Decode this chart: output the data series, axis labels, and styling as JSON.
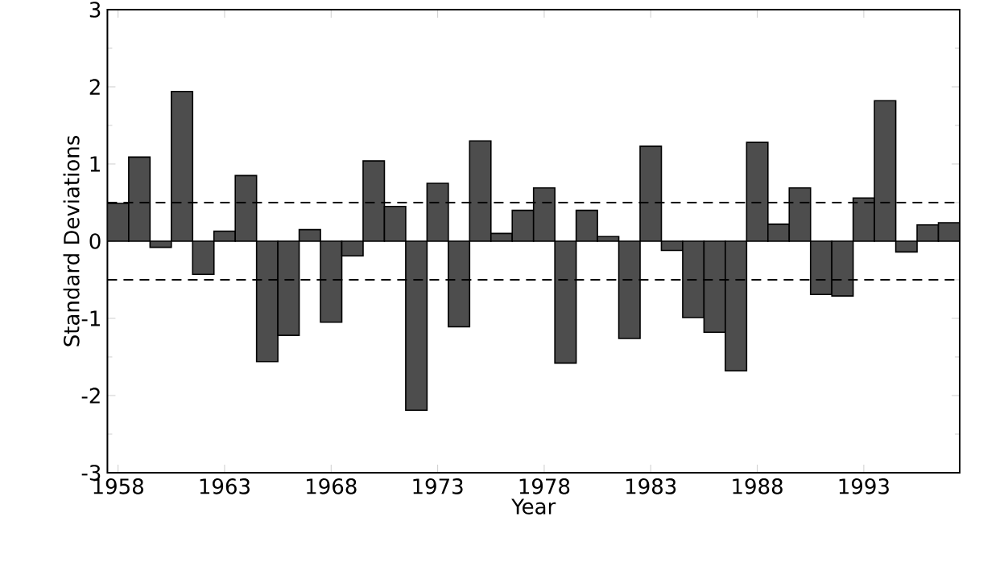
{
  "chart_data": {
    "type": "bar",
    "xlabel": "Year",
    "ylabel": "Standard Deviations",
    "x": [
      1958,
      1959,
      1960,
      1961,
      1962,
      1963,
      1964,
      1965,
      1966,
      1967,
      1968,
      1969,
      1970,
      1971,
      1972,
      1973,
      1974,
      1975,
      1976,
      1977,
      1978,
      1979,
      1980,
      1981,
      1982,
      1983,
      1984,
      1985,
      1986,
      1987,
      1988,
      1989,
      1990,
      1991,
      1992,
      1993,
      1994,
      1995,
      1996,
      1997
    ],
    "values": [
      0.49,
      1.09,
      -0.08,
      1.94,
      -0.43,
      0.13,
      0.85,
      -1.56,
      -1.22,
      0.15,
      -1.05,
      -0.19,
      1.04,
      0.45,
      -2.19,
      0.75,
      -1.11,
      1.3,
      0.1,
      0.4,
      0.69,
      -1.58,
      0.4,
      0.06,
      -1.26,
      1.23,
      -0.12,
      -0.99,
      -1.18,
      -1.68,
      1.28,
      0.22,
      0.69,
      -0.69,
      -0.71,
      0.56,
      1.82,
      -0.14,
      0.21,
      0.24
    ],
    "color": "#4d4d4d",
    "xlim": [
      1957.5,
      1997.5
    ],
    "xticks": [
      1958,
      1963,
      1968,
      1973,
      1978,
      1983,
      1988,
      1993
    ],
    "ylim": [
      -3,
      3
    ],
    "yticks": [
      -3,
      -2,
      -1,
      0,
      1,
      2,
      3
    ],
    "ref_lines": [
      {
        "axis": "y",
        "value": 0.5,
        "line_style": "dashed",
        "color": "#000000"
      },
      {
        "axis": "y",
        "value": -0.5,
        "line_style": "dashed",
        "color": "#000000"
      }
    ]
  }
}
